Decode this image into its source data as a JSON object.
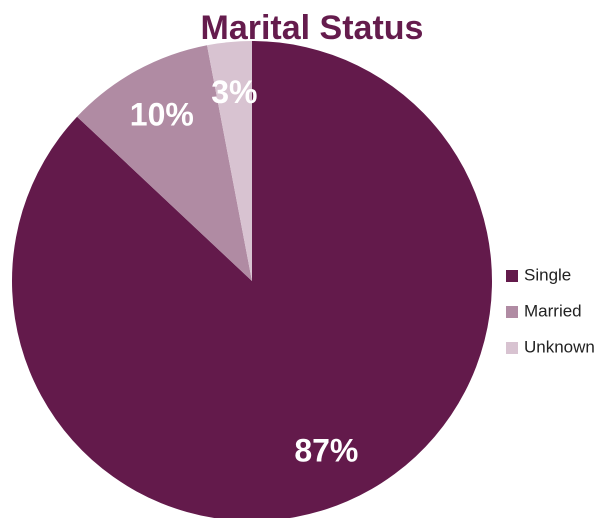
{
  "chart_data": {
    "type": "pie",
    "title": "Marital Status",
    "categories": [
      "Single",
      "Married",
      "Unknown"
    ],
    "values": [
      87,
      10,
      3
    ],
    "value_labels": [
      "87%",
      "10%",
      "3%"
    ],
    "colors": [
      "#631a4b",
      "#b08ba3",
      "#d8c3d1"
    ],
    "legend": "right"
  }
}
